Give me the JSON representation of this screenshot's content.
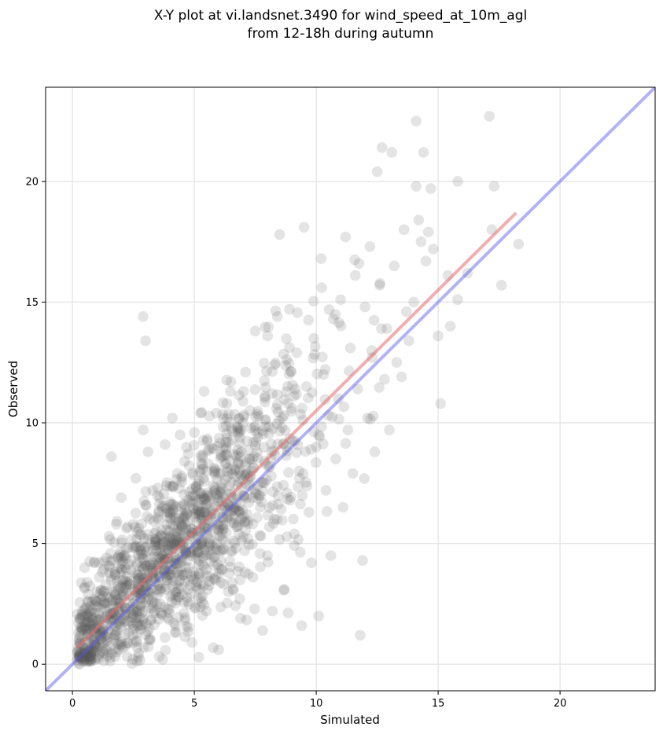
{
  "title_lines": [
    "X-Y plot at vi.landsnet.3490 for wind_speed_at_10m_agl",
    "from 12-18h during autumn"
  ],
  "chart_data": {
    "type": "scatter",
    "title": "X-Y plot at vi.landsnet.3490 for wind_speed_at_10m_agl\nfrom 12-18h during autumn",
    "xlabel": "Simulated",
    "ylabel": "Observed",
    "xlim": [
      -1.1,
      23.9
    ],
    "ylim": [
      -1.1,
      23.9
    ],
    "xticks": [
      0,
      5,
      10,
      15,
      20
    ],
    "yticks": [
      0,
      5,
      10,
      15,
      20
    ],
    "xtick_labels": [
      "0",
      "5",
      "10",
      "15",
      "20"
    ],
    "ytick_labels": [
      "0",
      "5",
      "10",
      "15",
      "20"
    ],
    "grid": true,
    "point_color": "#555555",
    "point_alpha": 0.16,
    "approx_point_count": 1500,
    "series": [
      {
        "kind": "points",
        "points": [
          [
            0.3,
            1.9
          ],
          [
            0.5,
            3.2
          ],
          [
            0.5,
            4.0
          ],
          [
            0.6,
            3.4
          ],
          [
            0.6,
            1.2
          ],
          [
            0.7,
            0.5
          ],
          [
            0.8,
            2.6
          ],
          [
            0.9,
            4.2
          ],
          [
            1.0,
            1.9
          ],
          [
            1.1,
            3.6
          ],
          [
            1.2,
            0.9
          ],
          [
            1.3,
            2.3
          ],
          [
            1.4,
            4.4
          ],
          [
            1.5,
            5.3
          ],
          [
            1.6,
            8.6
          ],
          [
            1.6,
            1.6
          ],
          [
            1.7,
            3.0
          ],
          [
            1.8,
            5.8
          ],
          [
            1.9,
            0.6
          ],
          [
            2.0,
            6.9
          ],
          [
            2.1,
            2.9
          ],
          [
            2.2,
            4.8
          ],
          [
            2.3,
            1.3
          ],
          [
            2.4,
            3.9
          ],
          [
            2.5,
            5.8
          ],
          [
            2.6,
            7.7
          ],
          [
            2.7,
            0.3
          ],
          [
            2.8,
            2.4
          ],
          [
            2.9,
            9.7
          ],
          [
            2.9,
            14.4
          ],
          [
            3.0,
            13.4
          ],
          [
            3.0,
            6.6
          ],
          [
            3.1,
            8.8
          ],
          [
            3.2,
            1.0
          ],
          [
            3.3,
            4.0
          ],
          [
            3.4,
            5.2
          ],
          [
            3.5,
            7.3
          ],
          [
            3.6,
            2.5
          ],
          [
            3.7,
            0.2
          ],
          [
            3.8,
            9.1
          ],
          [
            3.9,
            6.1
          ],
          [
            4.0,
            3.7
          ],
          [
            4.1,
            10.2
          ],
          [
            4.2,
            1.3
          ],
          [
            4.3,
            7.9
          ],
          [
            4.4,
            5.5
          ],
          [
            4.5,
            2.9
          ],
          [
            4.6,
            8.4
          ],
          [
            4.7,
            4.3
          ],
          [
            4.8,
            6.7
          ],
          [
            4.9,
            0.9
          ],
          [
            5.0,
            9.6
          ],
          [
            5.1,
            3.4
          ],
          [
            5.2,
            7.6
          ],
          [
            5.3,
            5.0
          ],
          [
            5.4,
            11.3
          ],
          [
            5.5,
            2.2
          ],
          [
            5.6,
            8.9
          ],
          [
            5.7,
            6.2
          ],
          [
            5.8,
            4.1
          ],
          [
            5.9,
            10.4
          ],
          [
            6.0,
            0.6
          ],
          [
            6.1,
            7.3
          ],
          [
            6.2,
            5.6
          ],
          [
            6.3,
            9.2
          ],
          [
            6.4,
            3.0
          ],
          [
            6.5,
            11.7
          ],
          [
            6.6,
            6.9
          ],
          [
            6.7,
            4.8
          ],
          [
            6.8,
            8.4
          ],
          [
            6.9,
            1.9
          ],
          [
            7.0,
            10.0
          ],
          [
            7.1,
            12.1
          ],
          [
            7.2,
            5.2
          ],
          [
            7.3,
            7.8
          ],
          [
            7.4,
            3.6
          ],
          [
            7.5,
            13.8
          ],
          [
            7.6,
            9.4
          ],
          [
            7.7,
            6.5
          ],
          [
            7.8,
            1.4
          ],
          [
            7.9,
            11.1
          ],
          [
            8.0,
            4.5
          ],
          [
            8.1,
            8.2
          ],
          [
            8.2,
            2.2
          ],
          [
            8.3,
            12.4
          ],
          [
            8.4,
            6.0
          ],
          [
            8.5,
            17.8
          ],
          [
            8.6,
            9.8
          ],
          [
            8.7,
            3.1
          ],
          [
            8.8,
            7.1
          ],
          [
            8.9,
            14.7
          ],
          [
            9.0,
            10.6
          ],
          [
            9.1,
            5.4
          ],
          [
            9.2,
            12.9
          ],
          [
            9.3,
            8.0
          ],
          [
            9.4,
            1.6
          ],
          [
            9.5,
            18.1
          ],
          [
            9.6,
            11.5
          ],
          [
            9.7,
            6.3
          ],
          [
            9.8,
            4.2
          ],
          [
            9.9,
            13.5
          ],
          [
            10.0,
            9.0
          ],
          [
            10.1,
            2.0
          ],
          [
            10.2,
            16.8
          ],
          [
            10.3,
            12.0
          ],
          [
            10.4,
            7.2
          ],
          [
            10.5,
            10.3
          ],
          [
            10.6,
            4.5
          ],
          [
            10.7,
            14.3
          ],
          [
            10.8,
            8.5
          ],
          [
            10.9,
            11.0
          ],
          [
            11.0,
            15.1
          ],
          [
            11.1,
            6.5
          ],
          [
            11.2,
            17.7
          ],
          [
            11.3,
            9.7
          ],
          [
            11.4,
            13.1
          ],
          [
            11.5,
            7.9
          ],
          [
            11.6,
            16.1
          ],
          [
            11.7,
            11.4
          ],
          [
            11.8,
            1.2
          ],
          [
            11.9,
            4.3
          ],
          [
            12.0,
            14.8
          ],
          [
            12.1,
            10.2
          ],
          [
            12.2,
            17.3
          ],
          [
            12.3,
            12.7
          ],
          [
            12.4,
            8.8
          ],
          [
            12.5,
            20.4
          ],
          [
            12.6,
            15.7
          ],
          [
            12.7,
            21.4
          ],
          [
            12.8,
            11.8
          ],
          [
            12.9,
            13.9
          ],
          [
            13.0,
            9.7
          ],
          [
            13.1,
            21.2
          ],
          [
            13.2,
            16.5
          ],
          [
            13.3,
            12.5
          ],
          [
            13.5,
            11.9
          ],
          [
            13.6,
            18.0
          ],
          [
            13.7,
            14.6
          ],
          [
            13.8,
            13.4
          ],
          [
            14.0,
            15.0
          ],
          [
            14.1,
            22.5
          ],
          [
            14.1,
            19.8
          ],
          [
            14.2,
            18.4
          ],
          [
            14.3,
            17.5
          ],
          [
            14.4,
            21.2
          ],
          [
            14.5,
            16.7
          ],
          [
            14.6,
            17.9
          ],
          [
            14.7,
            19.7
          ],
          [
            14.8,
            17.2
          ],
          [
            15.0,
            13.6
          ],
          [
            15.1,
            10.8
          ],
          [
            15.4,
            16.1
          ],
          [
            15.5,
            14.0
          ],
          [
            15.8,
            15.1
          ],
          [
            15.8,
            20.0
          ],
          [
            16.2,
            16.2
          ],
          [
            17.1,
            22.7
          ],
          [
            17.2,
            18.0
          ],
          [
            17.3,
            19.8
          ],
          [
            17.6,
            15.7
          ],
          [
            18.3,
            17.4
          ]
        ]
      },
      {
        "kind": "point_cloud",
        "description": "dense cloud of points scattered around the regression line",
        "center_slope": 1.0,
        "center_intercept": 0.4,
        "spread": 1.9,
        "x_range": [
          0.2,
          13.0
        ]
      },
      {
        "kind": "line",
        "name": "",
        "color": "#e86b6b",
        "alpha": 0.55,
        "points": [
          [
            0.2,
            0.7
          ],
          [
            18.2,
            18.7
          ]
        ]
      },
      {
        "kind": "line",
        "name": "",
        "color": "#5555ee",
        "alpha": 0.45,
        "points": [
          [
            -1.1,
            -1.1
          ],
          [
            23.9,
            23.9
          ]
        ]
      }
    ]
  }
}
